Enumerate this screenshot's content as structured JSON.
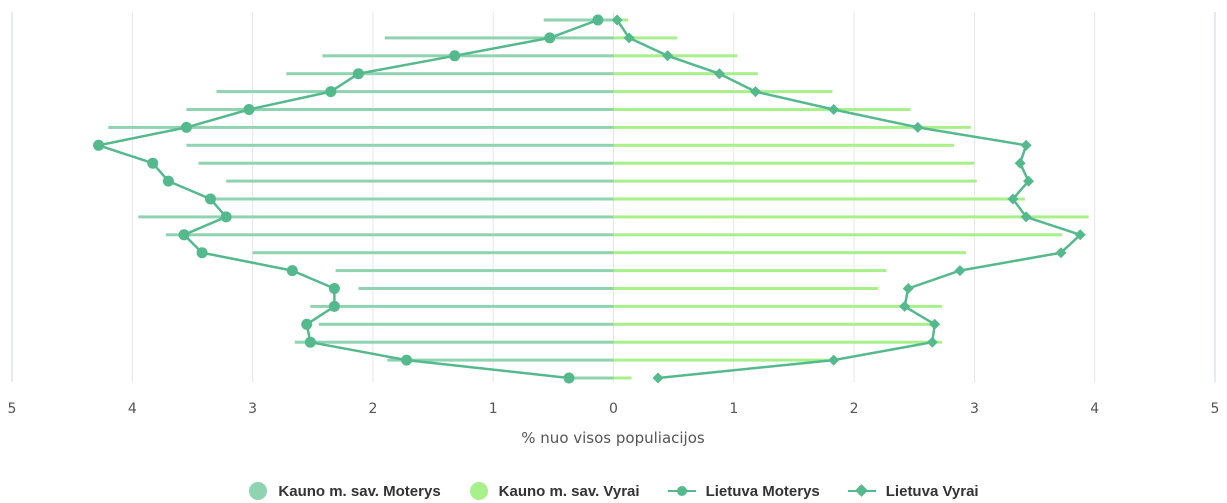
{
  "chart_data": {
    "type": "bar",
    "xlabel": "% nuo visos populiacijos",
    "xlim": [
      -5,
      5
    ],
    "xticks": [
      "5",
      "4",
      "3",
      "2",
      "1",
      "0",
      "1",
      "2",
      "3",
      "4",
      "5"
    ],
    "grid": true,
    "legend_position": "bottom-center",
    "groups": 21,
    "series": [
      {
        "name": "Kauno m. sav. Moterys",
        "kind": "bar",
        "side": "left",
        "color": "#8fd3b0",
        "values": [
          0.38,
          1.88,
          2.65,
          2.45,
          2.52,
          2.12,
          2.31,
          3.0,
          3.72,
          3.95,
          3.38,
          3.22,
          3.45,
          3.55,
          4.2,
          3.55,
          3.3,
          2.72,
          2.42,
          1.9,
          0.58
        ]
      },
      {
        "name": "Kauno m. sav. Vyrai",
        "kind": "bar",
        "side": "right",
        "color": "#a8f08a",
        "values": [
          0.15,
          1.78,
          2.73,
          2.65,
          2.73,
          2.2,
          2.27,
          2.93,
          3.73,
          3.95,
          3.42,
          3.02,
          3.0,
          2.83,
          2.97,
          2.47,
          1.82,
          1.2,
          1.03,
          0.53,
          0.12
        ]
      },
      {
        "name": "Lietuva Moterys",
        "kind": "line",
        "side": "left",
        "marker": "circle",
        "color": "#55b98e",
        "values": [
          0.37,
          1.72,
          2.52,
          2.55,
          2.32,
          2.32,
          2.67,
          3.42,
          3.57,
          3.22,
          3.35,
          3.7,
          3.83,
          4.28,
          3.55,
          3.03,
          2.35,
          2.12,
          1.32,
          0.53,
          0.13
        ]
      },
      {
        "name": "Lietuva Vyrai",
        "kind": "line",
        "side": "right",
        "marker": "diamond",
        "color": "#55b98e",
        "values": [
          0.37,
          1.83,
          2.65,
          2.67,
          2.42,
          2.45,
          2.88,
          3.72,
          3.88,
          3.43,
          3.32,
          3.45,
          3.38,
          3.43,
          2.53,
          1.83,
          1.18,
          0.88,
          0.45,
          0.13,
          0.03
        ]
      }
    ]
  }
}
